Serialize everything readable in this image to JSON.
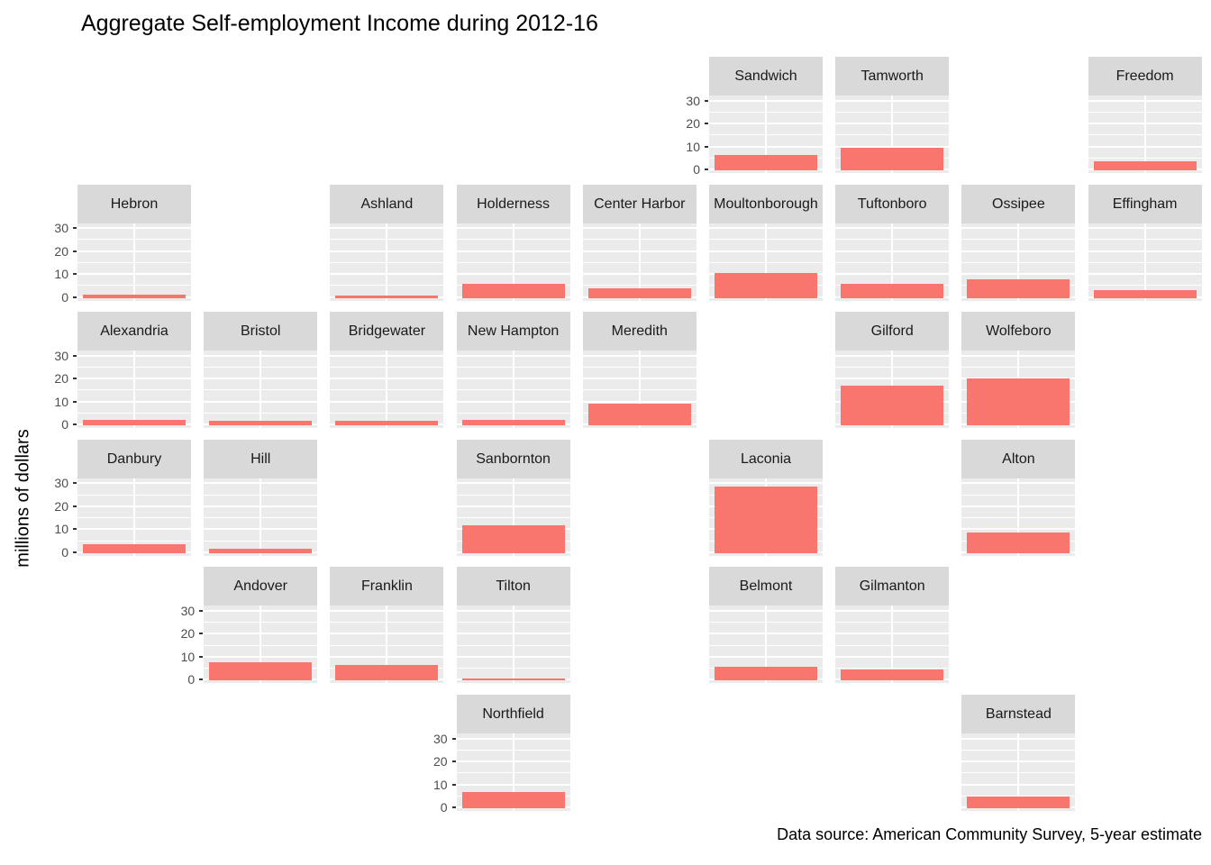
{
  "colors": {
    "bar": "#F8766D",
    "panel_background": "#EBEBEB",
    "strip_background": "#D9D9D9",
    "gridline": "#FFFFFF",
    "axis_text": "#4D4D4D",
    "tick_mark": "#333333",
    "text": "#000000"
  },
  "chart_data": {
    "type": "bar",
    "title": "Aggregate Self-employment Income during 2012-16",
    "ylabel": "millions of dollars",
    "xlabel": "",
    "caption": "Data source: American Community Survey, 5-year estimate",
    "yticks": [
      0,
      10,
      20,
      30
    ],
    "ylim": [
      0,
      32
    ],
    "grid": true,
    "legend": false,
    "facet_layout": "geographic grid of New Hampshire towns, 6 rows x 9 columns, one bar per facet",
    "facets": [
      {
        "town": "Sandwich",
        "row": 1,
        "col": 6,
        "value": 6.5,
        "axis": true
      },
      {
        "town": "Tamworth",
        "row": 1,
        "col": 7,
        "value": 10,
        "axis": false
      },
      {
        "town": "Freedom",
        "row": 1,
        "col": 9,
        "value": 4,
        "axis": false
      },
      {
        "town": "Hebron",
        "row": 2,
        "col": 1,
        "value": 1.5,
        "axis": true
      },
      {
        "town": "Ashland",
        "row": 2,
        "col": 3,
        "value": 1,
        "axis": false
      },
      {
        "town": "Holderness",
        "row": 2,
        "col": 4,
        "value": 6,
        "axis": false
      },
      {
        "town": "Center Harbor",
        "row": 2,
        "col": 5,
        "value": 4,
        "axis": false
      },
      {
        "town": "Moultonborough",
        "row": 2,
        "col": 6,
        "value": 11,
        "axis": false
      },
      {
        "town": "Tuftonboro",
        "row": 2,
        "col": 7,
        "value": 6,
        "axis": false
      },
      {
        "town": "Ossipee",
        "row": 2,
        "col": 8,
        "value": 8,
        "axis": false
      },
      {
        "town": "Effingham",
        "row": 2,
        "col": 9,
        "value": 3.5,
        "axis": false
      },
      {
        "town": "Alexandria",
        "row": 3,
        "col": 1,
        "value": 2.5,
        "axis": true
      },
      {
        "town": "Bristol",
        "row": 3,
        "col": 2,
        "value": 2,
        "axis": false
      },
      {
        "town": "Bridgewater",
        "row": 3,
        "col": 3,
        "value": 2,
        "axis": false
      },
      {
        "town": "New Hampton",
        "row": 3,
        "col": 4,
        "value": 2.5,
        "axis": false
      },
      {
        "town": "Meredith",
        "row": 3,
        "col": 5,
        "value": 9.5,
        "axis": false
      },
      {
        "town": "Gilford",
        "row": 3,
        "col": 7,
        "value": 17.5,
        "axis": false
      },
      {
        "town": "Wolfeboro",
        "row": 3,
        "col": 8,
        "value": 20.5,
        "axis": false
      },
      {
        "town": "Danbury",
        "row": 4,
        "col": 1,
        "value": 4,
        "axis": true
      },
      {
        "town": "Hill",
        "row": 4,
        "col": 2,
        "value": 2,
        "axis": false
      },
      {
        "town": "Sanbornton",
        "row": 4,
        "col": 4,
        "value": 12,
        "axis": false
      },
      {
        "town": "Laconia",
        "row": 4,
        "col": 6,
        "value": 29,
        "axis": false
      },
      {
        "town": "Alton",
        "row": 4,
        "col": 8,
        "value": 9,
        "axis": false
      },
      {
        "town": "Andover",
        "row": 5,
        "col": 2,
        "value": 8,
        "axis": true
      },
      {
        "town": "Franklin",
        "row": 5,
        "col": 3,
        "value": 7,
        "axis": false
      },
      {
        "town": "Tilton",
        "row": 5,
        "col": 4,
        "value": 1,
        "axis": false
      },
      {
        "town": "Belmont",
        "row": 5,
        "col": 6,
        "value": 6,
        "axis": false
      },
      {
        "town": "Gilmanton",
        "row": 5,
        "col": 7,
        "value": 5,
        "axis": false
      },
      {
        "town": "Northfield",
        "row": 6,
        "col": 4,
        "value": 7,
        "axis": true
      },
      {
        "town": "Barnstead",
        "row": 6,
        "col": 8,
        "value": 5,
        "axis": false
      }
    ]
  }
}
